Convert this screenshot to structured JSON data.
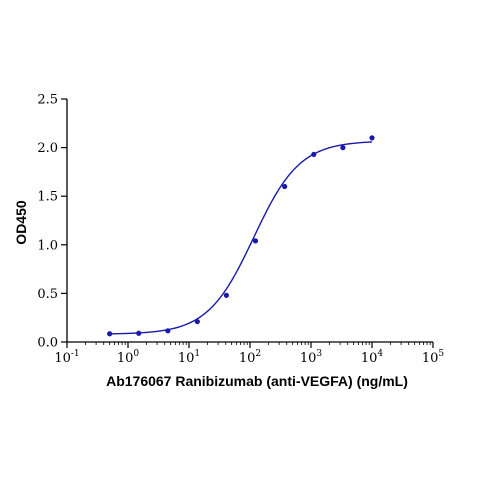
{
  "chart_data": {
    "type": "scatter",
    "title": "",
    "xlabel": "Ab176067 Ranibizumab (anti-VEGFA) (ng/mL)",
    "ylabel": "OD450",
    "x_scale": "log",
    "xlim": [
      0.1,
      100000
    ],
    "ylim": [
      0,
      2.5
    ],
    "x_ticks": [
      {
        "value": 0.1,
        "base": "10",
        "exp": "-1"
      },
      {
        "value": 1,
        "base": "10",
        "exp": "0"
      },
      {
        "value": 10,
        "base": "10",
        "exp": "1"
      },
      {
        "value": 100,
        "base": "10",
        "exp": "2"
      },
      {
        "value": 1000,
        "base": "10",
        "exp": "3"
      },
      {
        "value": 10000,
        "base": "10",
        "exp": "4"
      },
      {
        "value": 100000,
        "base": "10",
        "exp": "5"
      }
    ],
    "y_ticks": [
      {
        "value": 0,
        "label": "0.0"
      },
      {
        "value": 0.5,
        "label": "0.5"
      },
      {
        "value": 1,
        "label": "1.0"
      },
      {
        "value": 1.5,
        "label": "1.5"
      },
      {
        "value": 2,
        "label": "2.0"
      },
      {
        "value": 2.5,
        "label": "2.5"
      }
    ],
    "grid": false,
    "series": [
      {
        "points": [
          {
            "x": 0.5,
            "y": 0.085
          },
          {
            "x": 1.5,
            "y": 0.09
          },
          {
            "x": 4.5,
            "y": 0.115
          },
          {
            "x": 13.7,
            "y": 0.21
          },
          {
            "x": 41,
            "y": 0.48
          },
          {
            "x": 123,
            "y": 1.04
          },
          {
            "x": 370,
            "y": 1.6
          },
          {
            "x": 1111,
            "y": 1.93
          },
          {
            "x": 3333,
            "y": 2.0
          },
          {
            "x": 10000,
            "y": 2.1
          }
        ],
        "fit": {
          "model": "4PL",
          "bottom": 0.08,
          "top": 2.07,
          "ec50": 115,
          "hill": 1.15,
          "x_range": [
            0.5,
            10000
          ]
        },
        "color": "#1a1aa8"
      }
    ]
  }
}
